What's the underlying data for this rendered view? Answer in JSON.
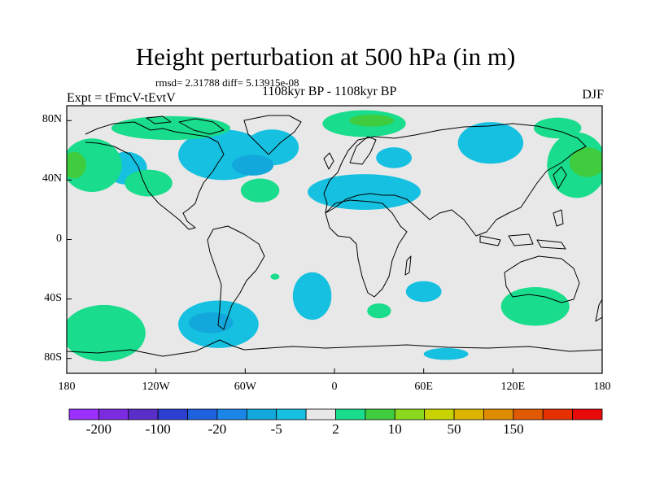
{
  "title": "Height perturbation at 500 hPa (in m)",
  "stats": "rmsd= 2.31788 diff= 5.13915e-08",
  "period": "1108kyr BP - 1108kyr BP",
  "experiment": "Expt = tFmcV-tEvtV",
  "season": "DJF",
  "map": {
    "lon_range": [
      -180,
      180
    ],
    "lat_range": [
      -90,
      90
    ],
    "y_ticks": [
      {
        "lat": 80,
        "label": "80N"
      },
      {
        "lat": 40,
        "label": "40N"
      },
      {
        "lat": 0,
        "label": "0"
      },
      {
        "lat": -40,
        "label": "40S"
      },
      {
        "lat": -80,
        "label": "80S"
      }
    ],
    "x_ticks": [
      {
        "lon": -180,
        "label": "180"
      },
      {
        "lon": -120,
        "label": "120W"
      },
      {
        "lon": -60,
        "label": "60W"
      },
      {
        "lon": 0,
        "label": "0"
      },
      {
        "lon": 60,
        "label": "60E"
      },
      {
        "lon": 120,
        "label": "120E"
      },
      {
        "lon": 180,
        "label": "180"
      }
    ]
  },
  "colorbar": {
    "colors": [
      "#9b30ff",
      "#7b2be0",
      "#5a2ec9",
      "#2c3fd1",
      "#1f62e0",
      "#1c86e8",
      "#12a8dc",
      "#16c0e0",
      "#e8e8e8",
      "#19dc8c",
      "#3fcc3f",
      "#8ad81e",
      "#c8d200",
      "#dcb400",
      "#e08c00",
      "#e25a00",
      "#e63000",
      "#e80a0a"
    ],
    "labels": [
      {
        "index": 1,
        "text": "-200"
      },
      {
        "index": 3,
        "text": "-100"
      },
      {
        "index": 5,
        "text": "-20"
      },
      {
        "index": 7,
        "text": "-5"
      },
      {
        "index": 9,
        "text": "2"
      },
      {
        "index": 11,
        "text": "10"
      },
      {
        "index": 13,
        "text": "50"
      },
      {
        "index": 15,
        "text": "150"
      }
    ]
  },
  "anomaly_regions": [
    {
      "level": "-5",
      "color": "#16c0e0",
      "lon": -75,
      "lat": 57,
      "rx": 30,
      "ry": 17
    },
    {
      "level": "-5",
      "color": "#16c0e0",
      "lon": -42,
      "lat": 62,
      "rx": 18,
      "ry": 12
    },
    {
      "level": "-20",
      "color": "#12a8dc",
      "lon": -55,
      "lat": 50,
      "rx": 14,
      "ry": 7
    },
    {
      "level": "-5",
      "color": "#16c0e0",
      "lon": -140,
      "lat": 48,
      "rx": 14,
      "ry": 11
    },
    {
      "level": "-5",
      "color": "#16c0e0",
      "lon": 20,
      "lat": 32,
      "rx": 38,
      "ry": 12
    },
    {
      "level": "-5",
      "color": "#16c0e0",
      "lon": 105,
      "lat": 65,
      "rx": 22,
      "ry": 14
    },
    {
      "level": "-5",
      "color": "#16c0e0",
      "lon": 40,
      "lat": 55,
      "rx": 12,
      "ry": 7
    },
    {
      "level": "-5",
      "color": "#16c0e0",
      "lon": -78,
      "lat": -57,
      "rx": 27,
      "ry": 16
    },
    {
      "level": "-20",
      "color": "#12a8dc",
      "lon": -83,
      "lat": -56,
      "rx": 15,
      "ry": 7
    },
    {
      "level": "-5",
      "color": "#16c0e0",
      "lon": -15,
      "lat": -38,
      "rx": 13,
      "ry": 16
    },
    {
      "level": "-5",
      "color": "#16c0e0",
      "lon": 60,
      "lat": -35,
      "rx": 12,
      "ry": 7
    },
    {
      "level": "-5",
      "color": "#16c0e0",
      "lon": 75,
      "lat": -77,
      "rx": 15,
      "ry": 4
    },
    {
      "level": "2",
      "color": "#19dc8c",
      "lon": -163,
      "lat": 50,
      "rx": 20,
      "ry": 18
    },
    {
      "level": "10",
      "color": "#3fcc3f",
      "lon": -175,
      "lat": 50,
      "rx": 8,
      "ry": 9
    },
    {
      "level": "2",
      "color": "#19dc8c",
      "lon": -125,
      "lat": 38,
      "rx": 16,
      "ry": 9
    },
    {
      "level": "2",
      "color": "#19dc8c",
      "lon": -110,
      "lat": 75,
      "rx": 40,
      "ry": 8
    },
    {
      "level": "2",
      "color": "#19dc8c",
      "lon": -50,
      "lat": 33,
      "rx": 13,
      "ry": 8
    },
    {
      "level": "2",
      "color": "#19dc8c",
      "lon": 20,
      "lat": 78,
      "rx": 28,
      "ry": 9
    },
    {
      "level": "10",
      "color": "#3fcc3f",
      "lon": 25,
      "lat": 80,
      "rx": 15,
      "ry": 4
    },
    {
      "level": "2",
      "color": "#19dc8c",
      "lon": 163,
      "lat": 50,
      "rx": 20,
      "ry": 22
    },
    {
      "level": "10",
      "color": "#3fcc3f",
      "lon": 170,
      "lat": 52,
      "rx": 12,
      "ry": 10
    },
    {
      "level": "2",
      "color": "#19dc8c",
      "lon": 150,
      "lat": 75,
      "rx": 16,
      "ry": 7
    },
    {
      "level": "2",
      "color": "#19dc8c",
      "lon": -155,
      "lat": -63,
      "rx": 28,
      "ry": 19
    },
    {
      "level": "2",
      "color": "#19dc8c",
      "lon": 135,
      "lat": -45,
      "rx": 23,
      "ry": 13
    },
    {
      "level": "2",
      "color": "#19dc8c",
      "lon": 30,
      "lat": -48,
      "rx": 8,
      "ry": 5
    },
    {
      "level": "2",
      "color": "#19dc8c",
      "lon": -40,
      "lat": -25,
      "rx": 3,
      "ry": 2
    }
  ]
}
